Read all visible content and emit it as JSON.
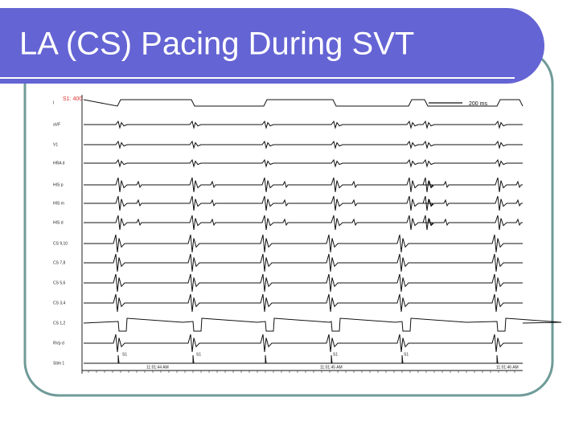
{
  "title": "LA (CS) Pacing During SVT",
  "annotations": {
    "pacing": "S1: 400",
    "scale": "200 ms"
  },
  "channels": [
    "I",
    "aVF",
    "V1",
    "HRA d",
    "HIS p",
    "HIS m",
    "HIS d",
    "CS 9,10",
    "CS 7,8",
    "CS 5,6",
    "CS 3,4",
    "CS 1,2",
    "RVp d",
    "Stim 1"
  ],
  "stim_labels": [
    "S1",
    "S1",
    "S1",
    "S1"
  ],
  "timestamps": [
    "11:01:44 AM",
    "11:01:45 AM",
    "11:01:46 AM"
  ]
}
